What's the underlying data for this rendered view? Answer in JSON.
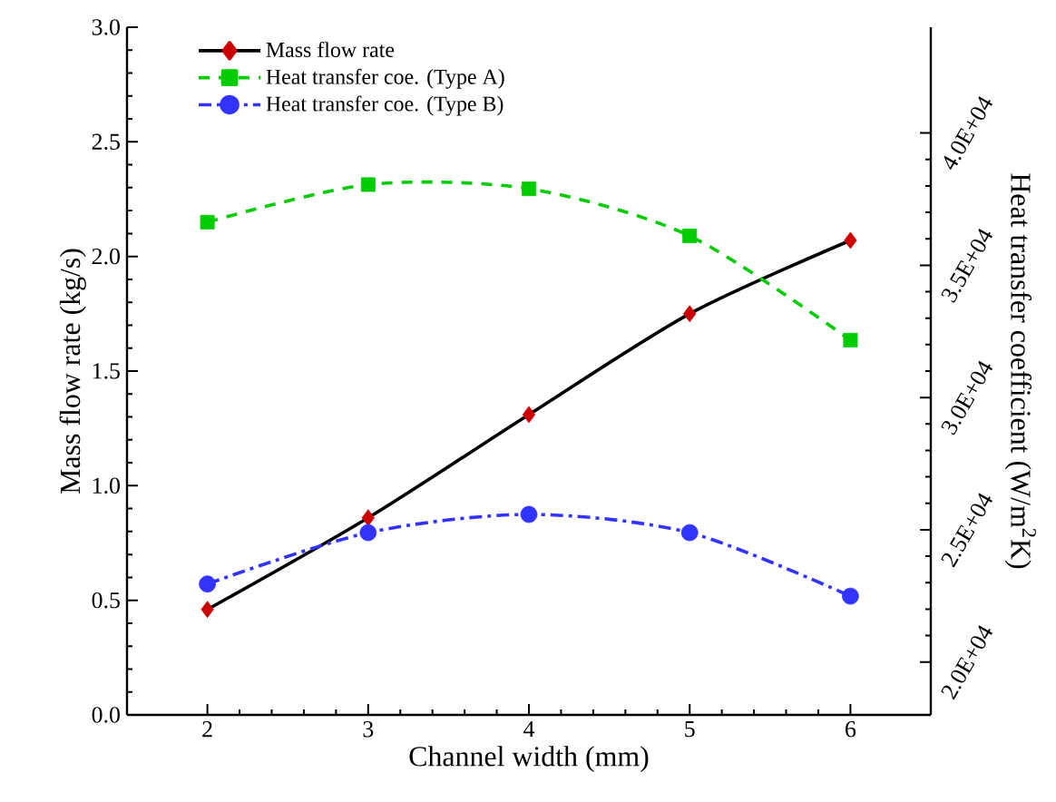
{
  "chart_data": {
    "type": "line",
    "xlabel": "Channel width (mm)",
    "ylabel": "Mass flow rate (kg/s)",
    "y2label": "Heat transfer coefficient (W/m$^{2}$K)",
    "x": [
      2,
      3,
      4,
      5,
      6
    ],
    "xlim": [
      1.5,
      6.5
    ],
    "xticks": [
      2,
      3,
      4,
      5,
      6
    ],
    "ylim": [
      0,
      3
    ],
    "yticks": [
      {
        "value": 0,
        "label": "0.0"
      },
      0.5,
      {
        "value": 1,
        "label": "1.0"
      },
      1.5,
      {
        "value": 2,
        "label": "2.0"
      },
      2.5,
      {
        "value": 3,
        "label": "3.0"
      }
    ],
    "y2lim": [
      18000,
      44000
    ],
    "y2ticks": [
      {
        "value": 20000,
        "label": "2.0E+04"
      },
      {
        "value": 25000,
        "label": "2.5E+04"
      },
      {
        "value": 30000,
        "label": "3.0E+04"
      },
      {
        "value": 35000,
        "label": "3.5E+04"
      },
      {
        "value": 40000,
        "label": "4.0E+04"
      }
    ],
    "legend": "top left",
    "series": [
      {
        "name": "Mass flow rate",
        "color": "#000000",
        "marker": "diamond",
        "colors": [
          "#cc0000",
          "#cc0000",
          "#cc0000",
          "#cc0000",
          "#cc0000"
        ],
        "line_style": "solid",
        "values": [
          0.46,
          0.86,
          1.31,
          1.75,
          2.07
        ]
      },
      {
        "name": "Heat transfer coe. (Type A)",
        "color": "#00cc00",
        "marker": "square",
        "line_style": "dashed",
        "axis": "y2",
        "values": [
          36630,
          38050,
          37890,
          36110,
          32170
        ]
      },
      {
        "name": "Heat transfer coe. (Type B)",
        "color": "#3333ff",
        "marker": "circle",
        "line_style": "dashdot",
        "axis": "y2",
        "values": [
          22950,
          24890,
          25580,
          24890,
          22490
        ]
      }
    ]
  }
}
